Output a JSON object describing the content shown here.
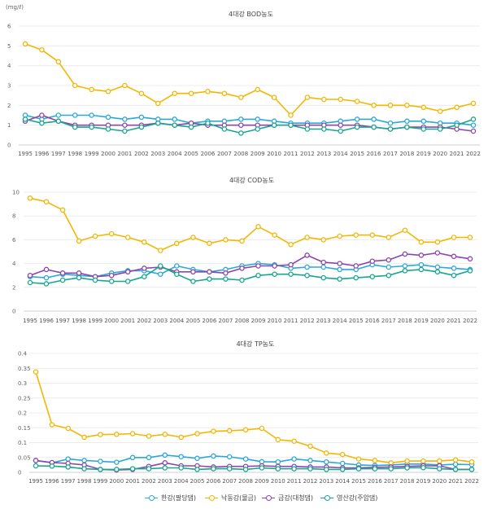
{
  "unit_label": "(mg/ℓ)",
  "chart_data": [
    {
      "type": "line",
      "title": "4대강 BOD농도",
      "xlabel": "",
      "ylabel": "",
      "ylim": [
        0,
        6
      ],
      "yticks": [
        "0",
        "1",
        "2",
        "3",
        "4",
        "5",
        "6"
      ],
      "grid": true,
      "x": [
        "1995",
        "1996",
        "1997",
        "1998",
        "1999",
        "2000",
        "2001",
        "2002",
        "2003",
        "2004",
        "2005",
        "2006",
        "2007",
        "2008",
        "2009",
        "2010",
        "2011",
        "2012",
        "2013",
        "2014",
        "2015",
        "2016",
        "2017",
        "2018",
        "2019",
        "2020",
        "2021",
        "2022"
      ],
      "series": [
        {
          "name": "한강(팔당댐)",
          "color": "#2AA8D8",
          "values": [
            1.5,
            1.3,
            1.5,
            1.5,
            1.5,
            1.4,
            1.3,
            1.4,
            1.3,
            1.3,
            1.1,
            1.2,
            1.2,
            1.3,
            1.3,
            1.2,
            1.1,
            1.1,
            1.1,
            1.2,
            1.3,
            1.3,
            1.1,
            1.2,
            1.2,
            1.1,
            1.1,
            1.0
          ]
        },
        {
          "name": "낙동강(물금)",
          "color": "#F2B705",
          "values": [
            5.1,
            4.8,
            4.2,
            3.0,
            2.8,
            2.7,
            3.0,
            2.6,
            2.1,
            2.6,
            2.6,
            2.7,
            2.6,
            2.4,
            2.8,
            2.4,
            1.5,
            2.4,
            2.3,
            2.3,
            2.2,
            2.0,
            2.0,
            2.0,
            1.9,
            1.7,
            1.9,
            2.1
          ]
        },
        {
          "name": "금강(대청댐)",
          "color": "#8E44AD",
          "values": [
            1.2,
            1.5,
            1.2,
            1.0,
            1.0,
            1.0,
            1.0,
            1.0,
            1.1,
            1.0,
            1.1,
            1.0,
            1.0,
            1.0,
            1.0,
            1.0,
            1.0,
            1.0,
            1.0,
            1.0,
            1.0,
            0.9,
            0.8,
            0.9,
            0.9,
            0.9,
            0.8,
            0.7
          ]
        },
        {
          "name": "영산강(주암댐)",
          "color": "#17A68F",
          "values": [
            1.3,
            1.1,
            1.2,
            0.9,
            0.9,
            0.8,
            0.7,
            0.9,
            1.1,
            1.0,
            0.9,
            1.1,
            0.8,
            0.6,
            0.8,
            1.0,
            1.0,
            0.8,
            0.8,
            0.7,
            0.9,
            0.9,
            0.8,
            0.9,
            0.8,
            0.8,
            1.0,
            1.3
          ]
        }
      ]
    },
    {
      "type": "line",
      "title": "4대강 COD농도",
      "xlabel": "",
      "ylabel": "",
      "ylim": [
        0,
        10
      ],
      "yticks": [
        "0",
        "2",
        "4",
        "6",
        "8",
        "10"
      ],
      "grid": true,
      "x": [
        "1995",
        "1996",
        "1997",
        "1998",
        "1999",
        "2000",
        "2001",
        "2002",
        "2003",
        "2004",
        "2005",
        "2006",
        "2007",
        "2008",
        "2009",
        "2010",
        "2011",
        "2012",
        "2013",
        "2014",
        "2015",
        "2016",
        "2017",
        "2018",
        "2019",
        "2020",
        "2021",
        "2022"
      ],
      "series": [
        {
          "name": "한강(팔당댐)",
          "color": "#2AA8D8",
          "values": [
            2.9,
            2.8,
            3.1,
            3.0,
            2.9,
            3.2,
            3.4,
            3.4,
            3.1,
            3.8,
            3.5,
            3.3,
            3.5,
            3.8,
            4.0,
            3.9,
            3.6,
            3.7,
            3.7,
            3.5,
            3.5,
            3.9,
            3.7,
            3.8,
            3.9,
            3.7,
            3.6,
            3.5
          ]
        },
        {
          "name": "낙동강(물금)",
          "color": "#F2B705",
          "values": [
            9.5,
            9.2,
            8.5,
            5.9,
            6.3,
            6.5,
            6.2,
            5.8,
            5.1,
            5.7,
            6.2,
            5.7,
            6.0,
            5.9,
            7.1,
            6.4,
            5.6,
            6.2,
            6.0,
            6.3,
            6.4,
            6.4,
            6.2,
            6.8,
            5.8,
            5.8,
            6.2,
            6.2
          ]
        },
        {
          "name": "금강(대청댐)",
          "color": "#8E44AD",
          "values": [
            3.0,
            3.5,
            3.2,
            3.2,
            2.9,
            3.0,
            3.3,
            3.6,
            3.7,
            3.3,
            3.3,
            3.3,
            3.2,
            3.6,
            3.8,
            3.8,
            3.9,
            4.7,
            4.1,
            4.0,
            3.8,
            4.2,
            4.3,
            4.8,
            4.7,
            4.9,
            4.6,
            4.4
          ]
        },
        {
          "name": "영산강(주암댐)",
          "color": "#17A68F",
          "values": [
            2.4,
            2.3,
            2.6,
            2.8,
            2.6,
            2.5,
            2.5,
            2.9,
            3.8,
            3.1,
            2.5,
            2.7,
            2.7,
            2.6,
            3.0,
            3.1,
            3.1,
            3.0,
            2.8,
            2.7,
            2.8,
            2.9,
            3.0,
            3.4,
            3.5,
            3.3,
            3.0,
            3.4
          ]
        }
      ]
    },
    {
      "type": "line",
      "title": "4대강 TP농도",
      "xlabel": "",
      "ylabel": "",
      "ylim": [
        0,
        0.4
      ],
      "yticks": [
        "0",
        "0.05",
        "0.1",
        "0.15",
        "0.2",
        "0.25",
        "0.3",
        "0.35",
        "0.4"
      ],
      "grid": true,
      "x": [
        "1995",
        "1996",
        "1997",
        "1998",
        "1999",
        "2000",
        "2001",
        "2002",
        "2003",
        "2004",
        "2005",
        "2006",
        "2007",
        "2008",
        "2009",
        "2010",
        "2011",
        "2012",
        "2013",
        "2014",
        "2015",
        "2016",
        "2017",
        "2018",
        "2019",
        "2020",
        "2021",
        "2022"
      ],
      "series": [
        {
          "name": "한강(팔당댐)",
          "color": "#2AA8D8",
          "values": [
            0.04,
            0.032,
            0.045,
            0.04,
            0.037,
            0.034,
            0.05,
            0.05,
            0.058,
            0.053,
            0.047,
            0.055,
            0.052,
            0.045,
            0.036,
            0.035,
            0.045,
            0.04,
            0.035,
            0.03,
            0.025,
            0.023,
            0.025,
            0.028,
            0.028,
            0.025,
            0.027,
            0.026
          ]
        },
        {
          "name": "낙동강(물금)",
          "color": "#F2B705",
          "values": [
            0.338,
            0.16,
            0.148,
            0.118,
            0.127,
            0.128,
            0.13,
            0.122,
            0.128,
            0.118,
            0.13,
            0.138,
            0.14,
            0.143,
            0.148,
            0.11,
            0.105,
            0.088,
            0.065,
            0.06,
            0.045,
            0.04,
            0.032,
            0.038,
            0.038,
            0.038,
            0.042,
            0.035
          ]
        },
        {
          "name": "금강(대청댐)",
          "color": "#8E44AD",
          "values": [
            0.04,
            0.033,
            0.03,
            0.025,
            0.01,
            0.008,
            0.01,
            0.02,
            0.032,
            0.022,
            0.022,
            0.018,
            0.02,
            0.02,
            0.022,
            0.02,
            0.02,
            0.018,
            0.018,
            0.015,
            0.015,
            0.017,
            0.018,
            0.02,
            0.022,
            0.022,
            0.01,
            0.01
          ]
        },
        {
          "name": "영산강(주암댐)",
          "color": "#17A68F",
          "values": [
            0.022,
            0.021,
            0.018,
            0.012,
            0.01,
            0.01,
            0.012,
            0.012,
            0.015,
            0.015,
            0.01,
            0.012,
            0.012,
            0.01,
            0.015,
            0.012,
            0.012,
            0.012,
            0.01,
            0.01,
            0.012,
            0.012,
            0.012,
            0.015,
            0.016,
            0.012,
            0.01,
            0.01
          ]
        }
      ]
    }
  ],
  "legend": [
    {
      "label": "한강(팔당댐)",
      "color": "#2AA8D8"
    },
    {
      "label": "낙동강(물금)",
      "color": "#F2B705"
    },
    {
      "label": "금강(대청댐)",
      "color": "#8E44AD"
    },
    {
      "label": "영산강(주암댐)",
      "color": "#17A68F"
    }
  ]
}
